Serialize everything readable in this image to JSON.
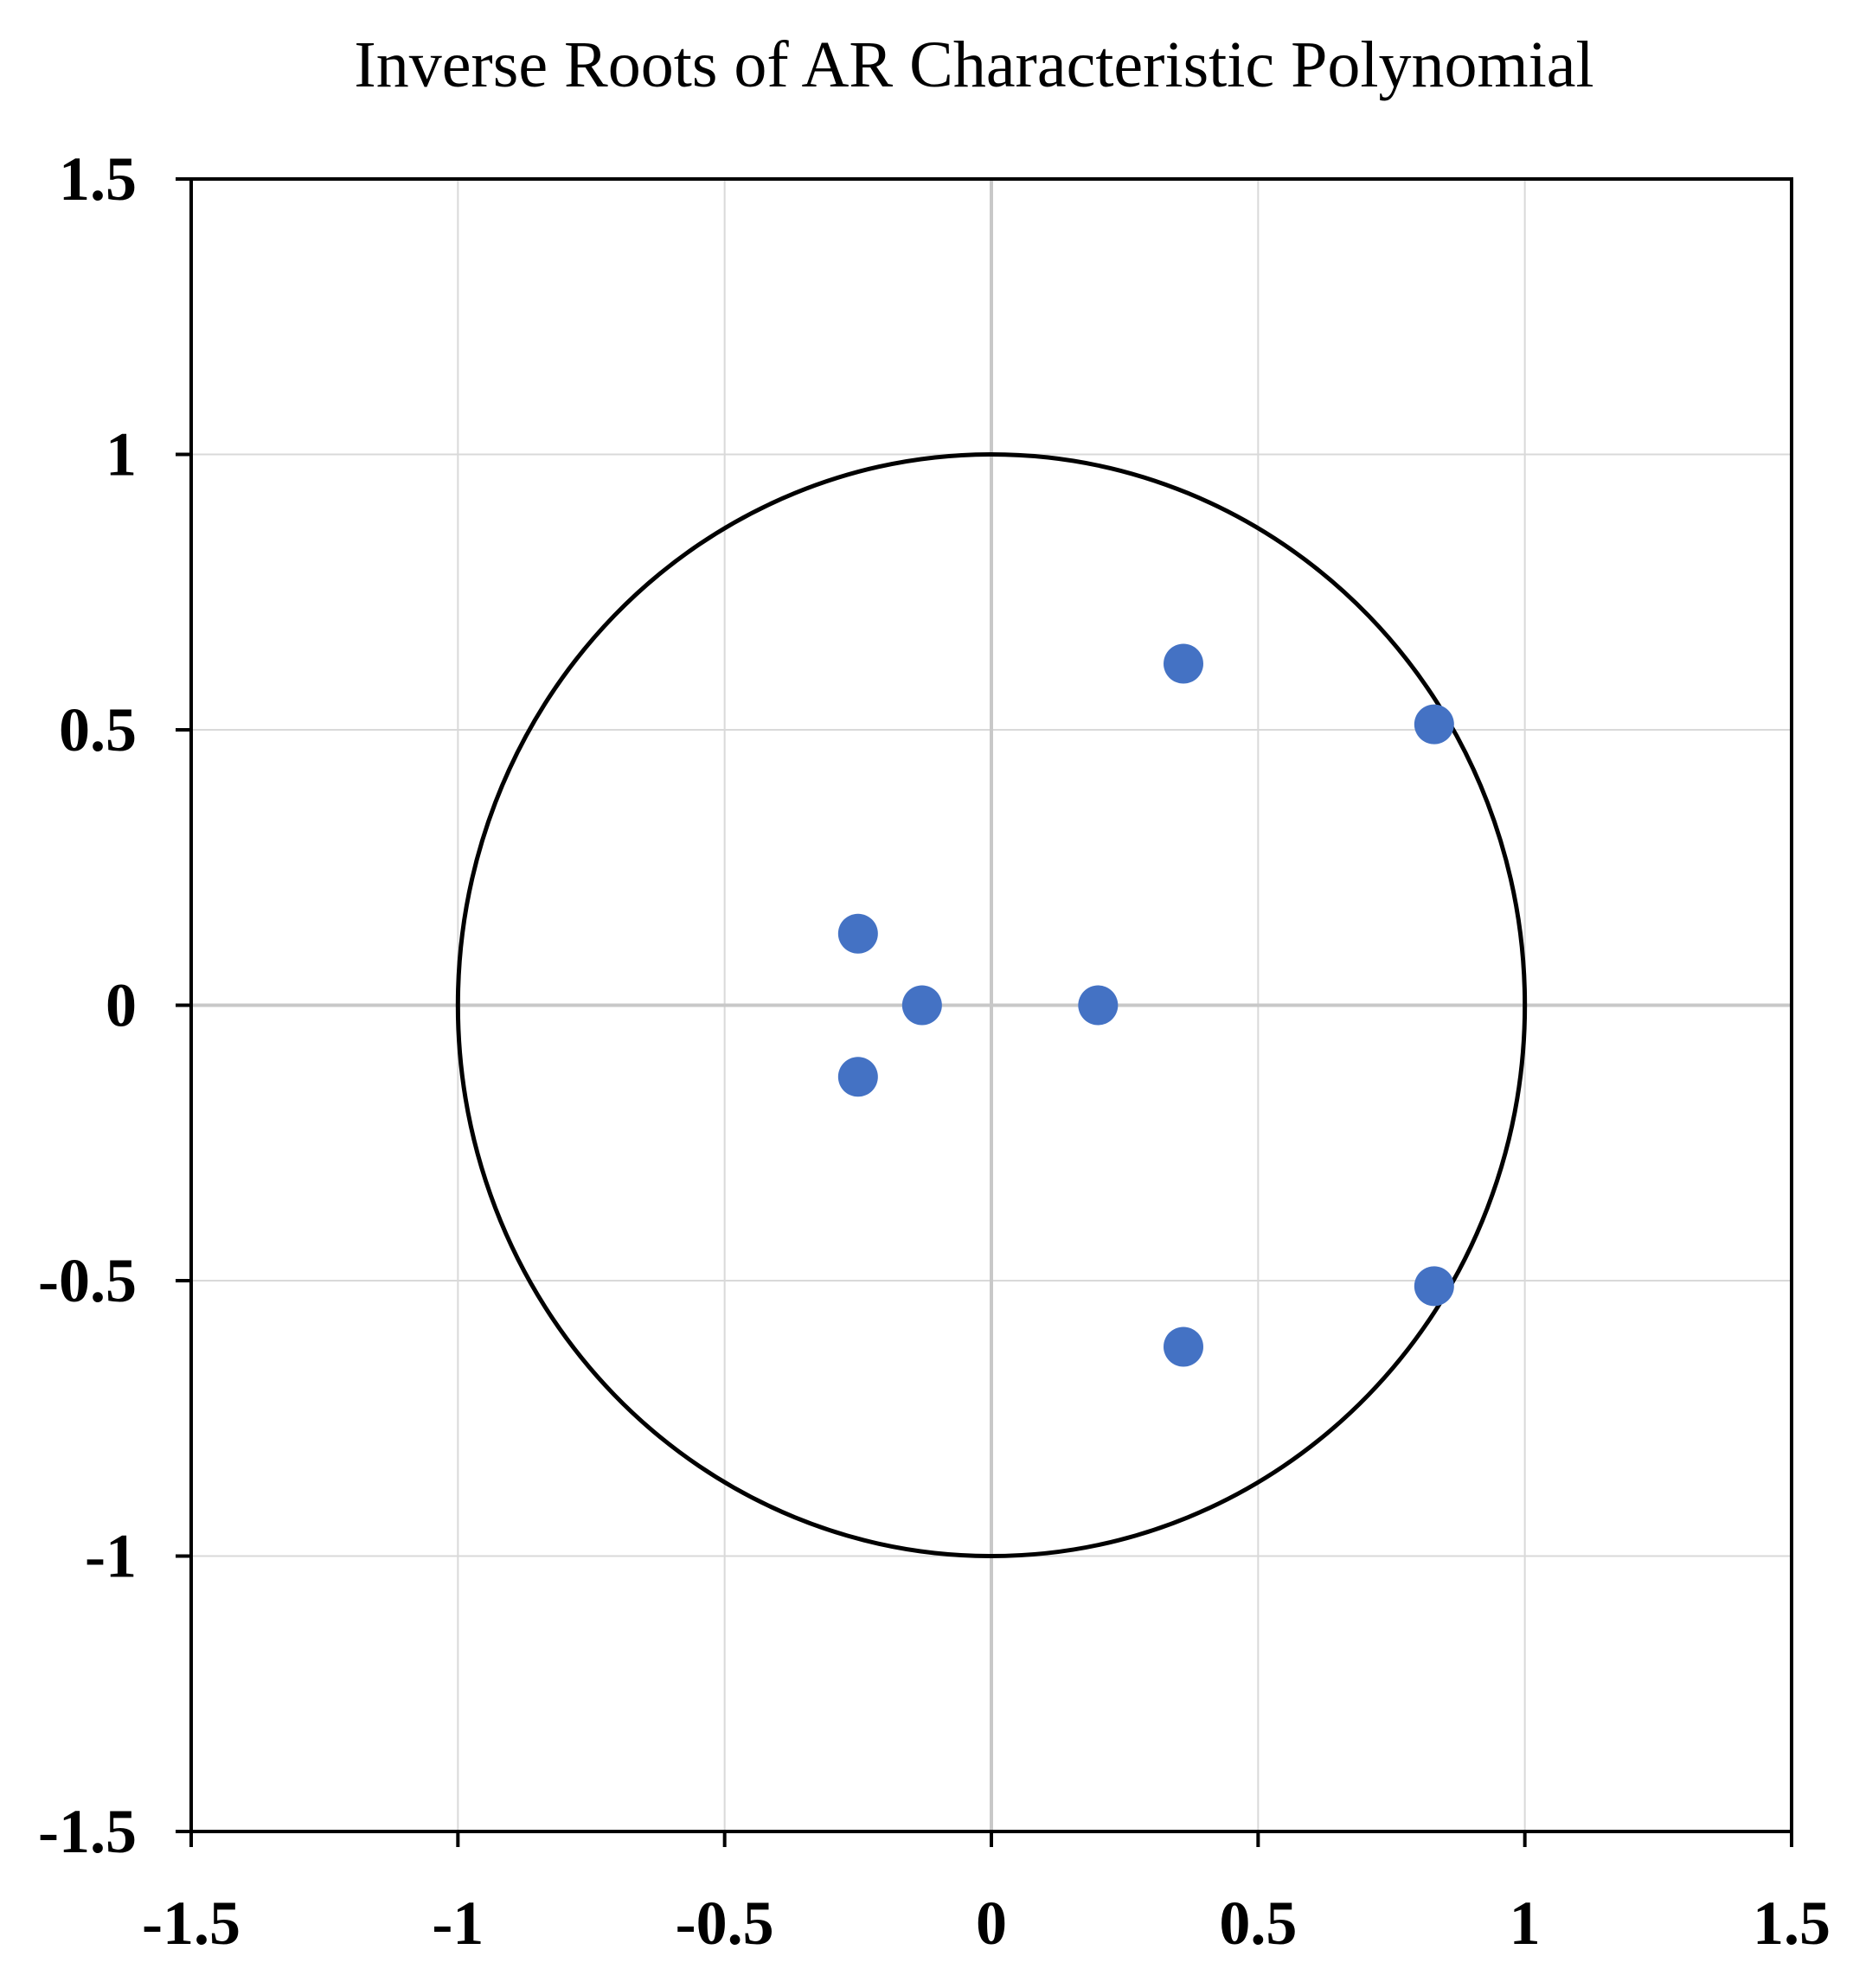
{
  "chart_data": {
    "type": "scatter",
    "title": "Inverse Roots of AR Characteristic Polynomial",
    "xlabel": "",
    "ylabel": "",
    "xlim": [
      -1.5,
      1.5
    ],
    "ylim": [
      -1.5,
      1.5
    ],
    "xticks": [
      -1.5,
      -1,
      -0.5,
      0,
      0.5,
      1,
      1.5
    ],
    "yticks": [
      -1.5,
      -1,
      -0.5,
      0,
      0.5,
      1,
      1.5
    ],
    "xtick_labels": [
      "-1.5",
      "-1",
      "-0.5",
      "0",
      "0.5",
      "1",
      "1.5"
    ],
    "ytick_labels": [
      "-1.5",
      "-1",
      "-0.5",
      "0",
      "0.5",
      "1",
      "1.5"
    ],
    "grid": true,
    "unit_circle": {
      "center": [
        0,
        0
      ],
      "radius": 1
    },
    "series": [
      {
        "points": [
          {
            "x": 0.36,
            "y": 0.62
          },
          {
            "x": 0.83,
            "y": 0.51
          },
          {
            "x": -0.25,
            "y": 0.13
          },
          {
            "x": -0.13,
            "y": 0.0
          },
          {
            "x": 0.2,
            "y": 0.0
          },
          {
            "x": -0.25,
            "y": -0.13
          },
          {
            "x": 0.83,
            "y": -0.51
          },
          {
            "x": 0.36,
            "y": -0.62
          }
        ]
      }
    ],
    "colors": {
      "points": "#4472c4",
      "grid": "#d9d9d9",
      "zero_axis": "#c8c8c8",
      "circle": "#000000",
      "frame": "#000000"
    }
  }
}
